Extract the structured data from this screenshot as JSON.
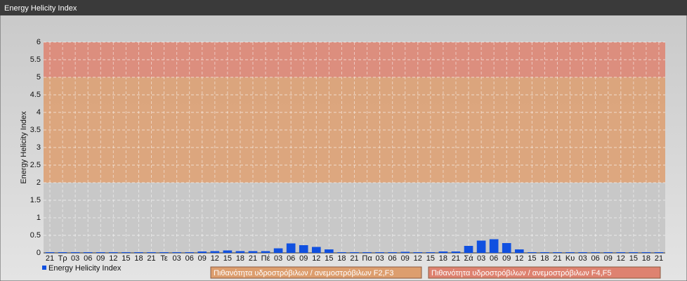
{
  "chart_data": {
    "type": "bar",
    "title": "Energy Helicity Index",
    "y_label": "Energy Helicity Index",
    "categories": [
      "21",
      "Τρ",
      "03",
      "06",
      "09",
      "12",
      "15",
      "18",
      "21",
      "Τε",
      "03",
      "06",
      "09",
      "12",
      "15",
      "18",
      "21",
      "Πέ",
      "03",
      "06",
      "09",
      "12",
      "15",
      "18",
      "21",
      "Πα",
      "03",
      "06",
      "09",
      "12",
      "15",
      "18",
      "21",
      "Σά",
      "03",
      "06",
      "09",
      "12",
      "15",
      "18",
      "21",
      "Κυ",
      "03",
      "06",
      "09",
      "12",
      "15",
      "18",
      "21"
    ],
    "series": [
      {
        "name": "Energy Helicity Index",
        "color": "#1050e0",
        "values": [
          0.02,
          0.02,
          0.02,
          0.02,
          0.02,
          0.02,
          0.02,
          0.02,
          0.02,
          0.02,
          0.02,
          0.02,
          0.04,
          0.05,
          0.07,
          0.05,
          0.05,
          0.05,
          0.13,
          0.27,
          0.22,
          0.17,
          0.1,
          0.02,
          0.02,
          0.02,
          0.02,
          0.02,
          0.03,
          0.02,
          0.02,
          0.04,
          0.04,
          0.2,
          0.35,
          0.39,
          0.28,
          0.1,
          0.02,
          0.02,
          0.02,
          0.02,
          0.02,
          0.02,
          0.02,
          0.02,
          0.02,
          0.02,
          0.02
        ]
      }
    ],
    "ylim": [
      0,
      6
    ],
    "yticks": [
      0,
      0.5,
      1,
      1.5,
      2,
      2.5,
      3,
      3.5,
      4,
      4.5,
      5,
      5.5,
      6
    ],
    "grid": true,
    "bands": [
      {
        "from": 0,
        "to": 2,
        "color": "#c4c4c4"
      },
      {
        "from": 2,
        "to": 5,
        "color": "#dd9e6e",
        "label": "Πιθανότητα υδροστρόβιλων / ανεμοστρόβιλων F2,F3"
      },
      {
        "from": 5,
        "to": 6,
        "color": "#de8270",
        "label": "Πιθανότητα υδροστρόβιλων / ανεμοστρόβιλων F4,F5"
      }
    ]
  }
}
